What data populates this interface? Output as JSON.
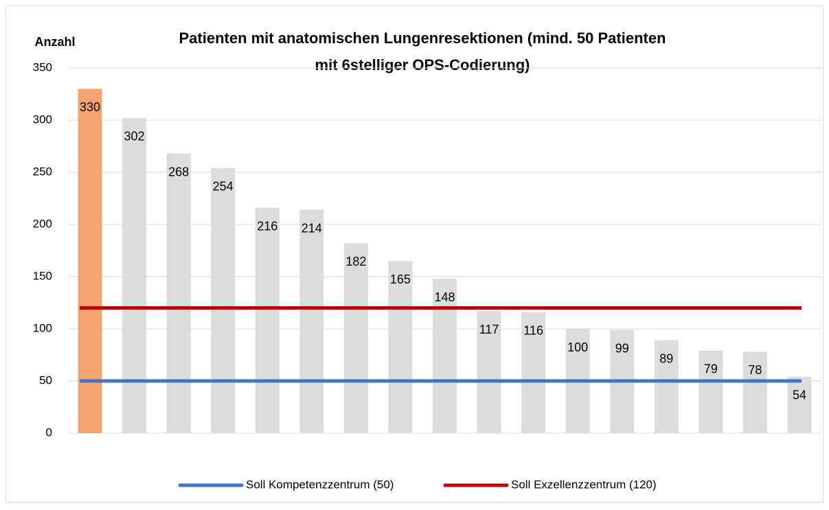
{
  "chart_data": {
    "type": "bar",
    "title": [
      "Patienten mit anatomischen Lungenresektionen (mind. 50 Patienten",
      "mit 6stelliger OPS-Codierung)"
    ],
    "y_label": "Anzahl",
    "categories": [
      null,
      null,
      null,
      null,
      null,
      null,
      null,
      null,
      null,
      null,
      null,
      null,
      null,
      null,
      null,
      null,
      null
    ],
    "values": [
      330,
      302,
      268,
      254,
      216,
      214,
      182,
      165,
      148,
      117,
      116,
      100,
      99,
      89,
      79,
      78,
      54
    ],
    "colors": [
      "#f4a46c",
      "#dcdcdc",
      "#dcdcdc",
      "#dcdcdc",
      "#dcdcdc",
      "#dcdcdc",
      "#dcdcdc",
      "#dcdcdc",
      "#dcdcdc",
      "#dcdcdc",
      "#dcdcdc",
      "#dcdcdc",
      "#dcdcdc",
      "#dcdcdc",
      "#dcdcdc",
      "#dcdcdc",
      "#dcdcdc"
    ],
    "reference_lines": [
      {
        "name": "Soll Kompetenzzentrum (50)",
        "color": "#4472c4",
        "value": 50
      },
      {
        "name": "Soll Exzellenzzentrum (120)",
        "color": "#c00000",
        "value": 120
      }
    ],
    "ylim": [
      0,
      350
    ],
    "yticks": [
      0,
      50,
      100,
      150,
      200,
      250,
      300,
      350
    ],
    "grid": true,
    "legend": "bottom"
  }
}
